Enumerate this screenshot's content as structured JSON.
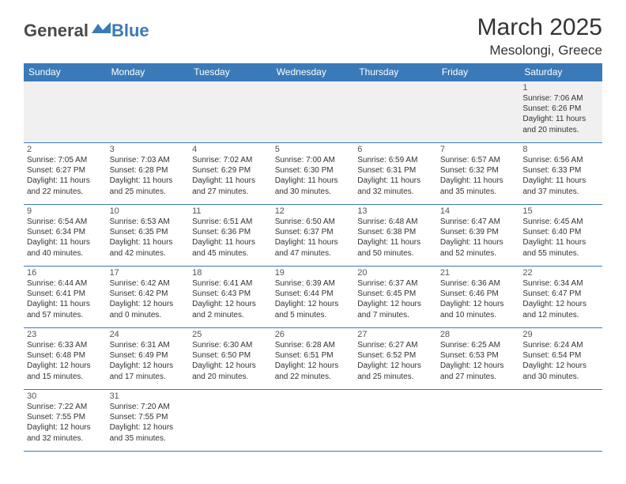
{
  "brand": {
    "general": "General",
    "blue": "Blue"
  },
  "title": "March 2025",
  "location": "Mesolongi, Greece",
  "weekdays": [
    "Sunday",
    "Monday",
    "Tuesday",
    "Wednesday",
    "Thursday",
    "Friday",
    "Saturday"
  ],
  "colors": {
    "header_bg": "#3a7ab8",
    "header_text": "#ffffff",
    "empty_bg": "#f0f0f0",
    "border": "#3a7ab8",
    "logo_blue": "#3a7ab8",
    "logo_gray": "#4a4a4a"
  },
  "days": {
    "1": {
      "sunrise": "7:06 AM",
      "sunset": "6:26 PM",
      "daylight": "11 hours and 20 minutes."
    },
    "2": {
      "sunrise": "7:05 AM",
      "sunset": "6:27 PM",
      "daylight": "11 hours and 22 minutes."
    },
    "3": {
      "sunrise": "7:03 AM",
      "sunset": "6:28 PM",
      "daylight": "11 hours and 25 minutes."
    },
    "4": {
      "sunrise": "7:02 AM",
      "sunset": "6:29 PM",
      "daylight": "11 hours and 27 minutes."
    },
    "5": {
      "sunrise": "7:00 AM",
      "sunset": "6:30 PM",
      "daylight": "11 hours and 30 minutes."
    },
    "6": {
      "sunrise": "6:59 AM",
      "sunset": "6:31 PM",
      "daylight": "11 hours and 32 minutes."
    },
    "7": {
      "sunrise": "6:57 AM",
      "sunset": "6:32 PM",
      "daylight": "11 hours and 35 minutes."
    },
    "8": {
      "sunrise": "6:56 AM",
      "sunset": "6:33 PM",
      "daylight": "11 hours and 37 minutes."
    },
    "9": {
      "sunrise": "6:54 AM",
      "sunset": "6:34 PM",
      "daylight": "11 hours and 40 minutes."
    },
    "10": {
      "sunrise": "6:53 AM",
      "sunset": "6:35 PM",
      "daylight": "11 hours and 42 minutes."
    },
    "11": {
      "sunrise": "6:51 AM",
      "sunset": "6:36 PM",
      "daylight": "11 hours and 45 minutes."
    },
    "12": {
      "sunrise": "6:50 AM",
      "sunset": "6:37 PM",
      "daylight": "11 hours and 47 minutes."
    },
    "13": {
      "sunrise": "6:48 AM",
      "sunset": "6:38 PM",
      "daylight": "11 hours and 50 minutes."
    },
    "14": {
      "sunrise": "6:47 AM",
      "sunset": "6:39 PM",
      "daylight": "11 hours and 52 minutes."
    },
    "15": {
      "sunrise": "6:45 AM",
      "sunset": "6:40 PM",
      "daylight": "11 hours and 55 minutes."
    },
    "16": {
      "sunrise": "6:44 AM",
      "sunset": "6:41 PM",
      "daylight": "11 hours and 57 minutes."
    },
    "17": {
      "sunrise": "6:42 AM",
      "sunset": "6:42 PM",
      "daylight": "12 hours and 0 minutes."
    },
    "18": {
      "sunrise": "6:41 AM",
      "sunset": "6:43 PM",
      "daylight": "12 hours and 2 minutes."
    },
    "19": {
      "sunrise": "6:39 AM",
      "sunset": "6:44 PM",
      "daylight": "12 hours and 5 minutes."
    },
    "20": {
      "sunrise": "6:37 AM",
      "sunset": "6:45 PM",
      "daylight": "12 hours and 7 minutes."
    },
    "21": {
      "sunrise": "6:36 AM",
      "sunset": "6:46 PM",
      "daylight": "12 hours and 10 minutes."
    },
    "22": {
      "sunrise": "6:34 AM",
      "sunset": "6:47 PM",
      "daylight": "12 hours and 12 minutes."
    },
    "23": {
      "sunrise": "6:33 AM",
      "sunset": "6:48 PM",
      "daylight": "12 hours and 15 minutes."
    },
    "24": {
      "sunrise": "6:31 AM",
      "sunset": "6:49 PM",
      "daylight": "12 hours and 17 minutes."
    },
    "25": {
      "sunrise": "6:30 AM",
      "sunset": "6:50 PM",
      "daylight": "12 hours and 20 minutes."
    },
    "26": {
      "sunrise": "6:28 AM",
      "sunset": "6:51 PM",
      "daylight": "12 hours and 22 minutes."
    },
    "27": {
      "sunrise": "6:27 AM",
      "sunset": "6:52 PM",
      "daylight": "12 hours and 25 minutes."
    },
    "28": {
      "sunrise": "6:25 AM",
      "sunset": "6:53 PM",
      "daylight": "12 hours and 27 minutes."
    },
    "29": {
      "sunrise": "6:24 AM",
      "sunset": "6:54 PM",
      "daylight": "12 hours and 30 minutes."
    },
    "30": {
      "sunrise": "7:22 AM",
      "sunset": "7:55 PM",
      "daylight": "12 hours and 32 minutes."
    },
    "31": {
      "sunrise": "7:20 AM",
      "sunset": "7:55 PM",
      "daylight": "12 hours and 35 minutes."
    }
  },
  "labels": {
    "sunrise": "Sunrise:",
    "sunset": "Sunset:",
    "daylight": "Daylight:"
  },
  "grid": [
    [
      0,
      0,
      0,
      0,
      0,
      0,
      1
    ],
    [
      2,
      3,
      4,
      5,
      6,
      7,
      8
    ],
    [
      9,
      10,
      11,
      12,
      13,
      14,
      15
    ],
    [
      16,
      17,
      18,
      19,
      20,
      21,
      22
    ],
    [
      23,
      24,
      25,
      26,
      27,
      28,
      29
    ],
    [
      30,
      31,
      0,
      0,
      0,
      0,
      0
    ]
  ]
}
